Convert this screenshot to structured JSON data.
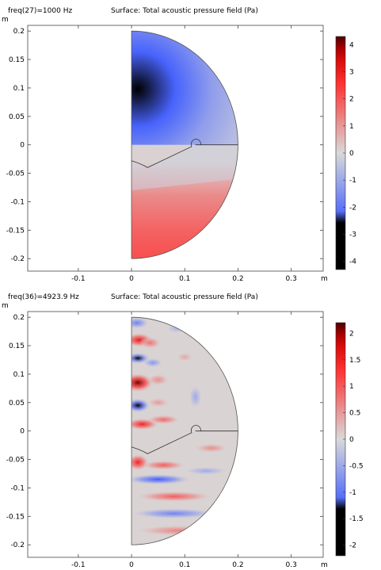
{
  "chart_data": [
    {
      "type": "heatmap",
      "label": "freq(27)=1000 Hz",
      "title": "Surface: Total acoustic pressure field (Pa)",
      "x_unit": "m",
      "y_unit": "m",
      "xlim": [
        -0.195,
        0.36
      ],
      "ylim": [
        -0.222,
        0.21
      ],
      "x_ticks": [
        -0.1,
        0,
        0.1,
        0.2,
        0.3
      ],
      "x_tick_labels": [
        "-0.1",
        "0",
        "0.1",
        "0.2",
        "0.3"
      ],
      "y_ticks": [
        0.2,
        0.15,
        0.1,
        0.05,
        0,
        -0.05,
        -0.1,
        -0.15,
        -0.2
      ],
      "y_tick_labels": [
        "0.2",
        "0.15",
        "0.1",
        "0.05",
        "0",
        "-0.05",
        "-0.1",
        "-0.15",
        "-0.2"
      ],
      "colorbar": {
        "min": -4.3,
        "max": 4.3,
        "ticks": [
          4,
          3,
          2,
          1,
          0,
          -1,
          -2,
          -3,
          -4
        ],
        "tick_labels": [
          "4",
          "3",
          "2",
          "1",
          "0",
          "-1",
          "-2",
          "-3",
          "-4"
        ],
        "colormap": [
          "#00004d",
          "#0000cc",
          "#3d5aff",
          "#d9d9d9",
          "#ff3030",
          "#cc0000",
          "#4d0000"
        ]
      },
      "domain": {
        "shape": "half-disk",
        "radius": 0.2
      },
      "field": "upper region strongly negative (about -3.5 Pa near x=0.01, y=0.1), lower region positive (about +2 Pa)"
    },
    {
      "type": "heatmap",
      "label": "freq(36)=4923.9 Hz",
      "title": "Surface: Total acoustic pressure field (Pa)",
      "x_unit": "m",
      "y_unit": "m",
      "xlim": [
        -0.195,
        0.36
      ],
      "ylim": [
        -0.222,
        0.21
      ],
      "x_ticks": [
        -0.1,
        0,
        0.1,
        0.2,
        0.3
      ],
      "x_tick_labels": [
        "-0.1",
        "0",
        "0.1",
        "0.2",
        "0.3"
      ],
      "y_ticks": [
        0.2,
        0.15,
        0.1,
        0.05,
        0,
        -0.05,
        -0.1,
        -0.15,
        -0.2
      ],
      "y_tick_labels": [
        "0.2",
        "0.15",
        "0.1",
        "0.05",
        "0",
        "-0.05",
        "-0.1",
        "-0.15",
        "-0.2"
      ],
      "colorbar": {
        "min": -2.2,
        "max": 2.2,
        "ticks": [
          2,
          1.5,
          1,
          0.5,
          0,
          -0.5,
          -1,
          -1.5,
          -2
        ],
        "tick_labels": [
          "2",
          "1.5",
          "1",
          "0.5",
          "0",
          "-0.5",
          "-1",
          "-1.5",
          "-2"
        ],
        "colormap": [
          "#00004d",
          "#0000cc",
          "#3d5aff",
          "#d9d9d9",
          "#ff3030",
          "#cc0000",
          "#4d0000"
        ]
      },
      "domain": {
        "shape": "half-disk",
        "radius": 0.2
      },
      "field": "alternating red and blue lobes radiating from the baffle, peak about +2 Pa near x=0.01, y=0.085"
    }
  ]
}
